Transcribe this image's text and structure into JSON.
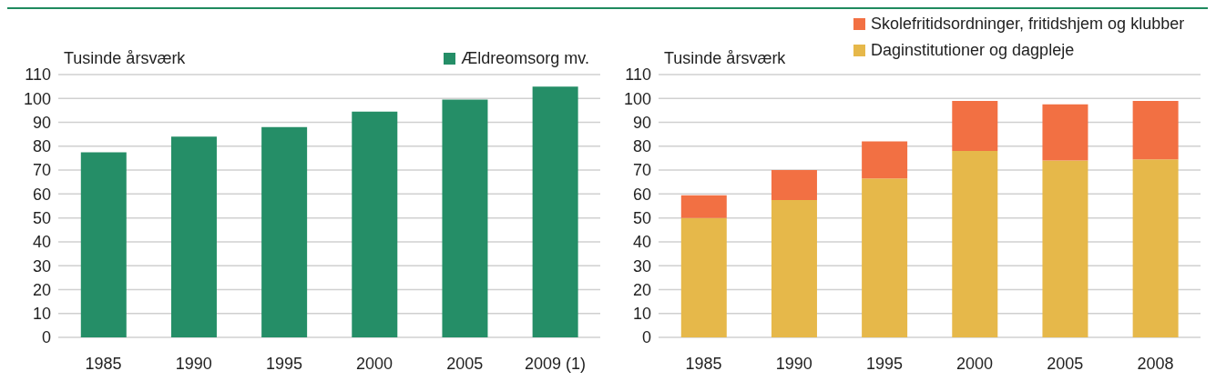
{
  "chart_data": [
    {
      "type": "bar",
      "ylabel": "Tusinde årsværk",
      "categories": [
        "1985",
        "1990",
        "1995",
        "2000",
        "2005",
        "2009 (1)"
      ],
      "series": [
        {
          "name": "Ældreomsorg mv.",
          "color": "#258e67",
          "values": [
            77.5,
            84,
            88,
            94.5,
            99.5,
            105
          ]
        }
      ],
      "ylim": [
        0,
        110
      ],
      "yticks": [
        0,
        10,
        20,
        30,
        40,
        50,
        60,
        70,
        80,
        90,
        100,
        110
      ],
      "grid": "y",
      "legend": "top right"
    },
    {
      "type": "bar",
      "stacked": true,
      "ylabel": "Tusinde årsværk",
      "categories": [
        "1985",
        "1990",
        "1995",
        "2000",
        "2005",
        "2008"
      ],
      "series": [
        {
          "name": "Daginstitutioner og dagpleje",
          "color": "#e6b84a",
          "values": [
            50,
            57.5,
            66.5,
            78,
            74,
            74.5
          ]
        },
        {
          "name": "Skolefritidsordninger, fritidshjem og klubber",
          "color": "#f27043",
          "values": [
            9.5,
            12.5,
            15.5,
            21,
            23.5,
            24.5
          ]
        }
      ],
      "ylim": [
        0,
        110
      ],
      "yticks": [
        0,
        10,
        20,
        30,
        40,
        50,
        60,
        70,
        80,
        90,
        100,
        110
      ],
      "grid": "y",
      "legend": "top"
    }
  ]
}
